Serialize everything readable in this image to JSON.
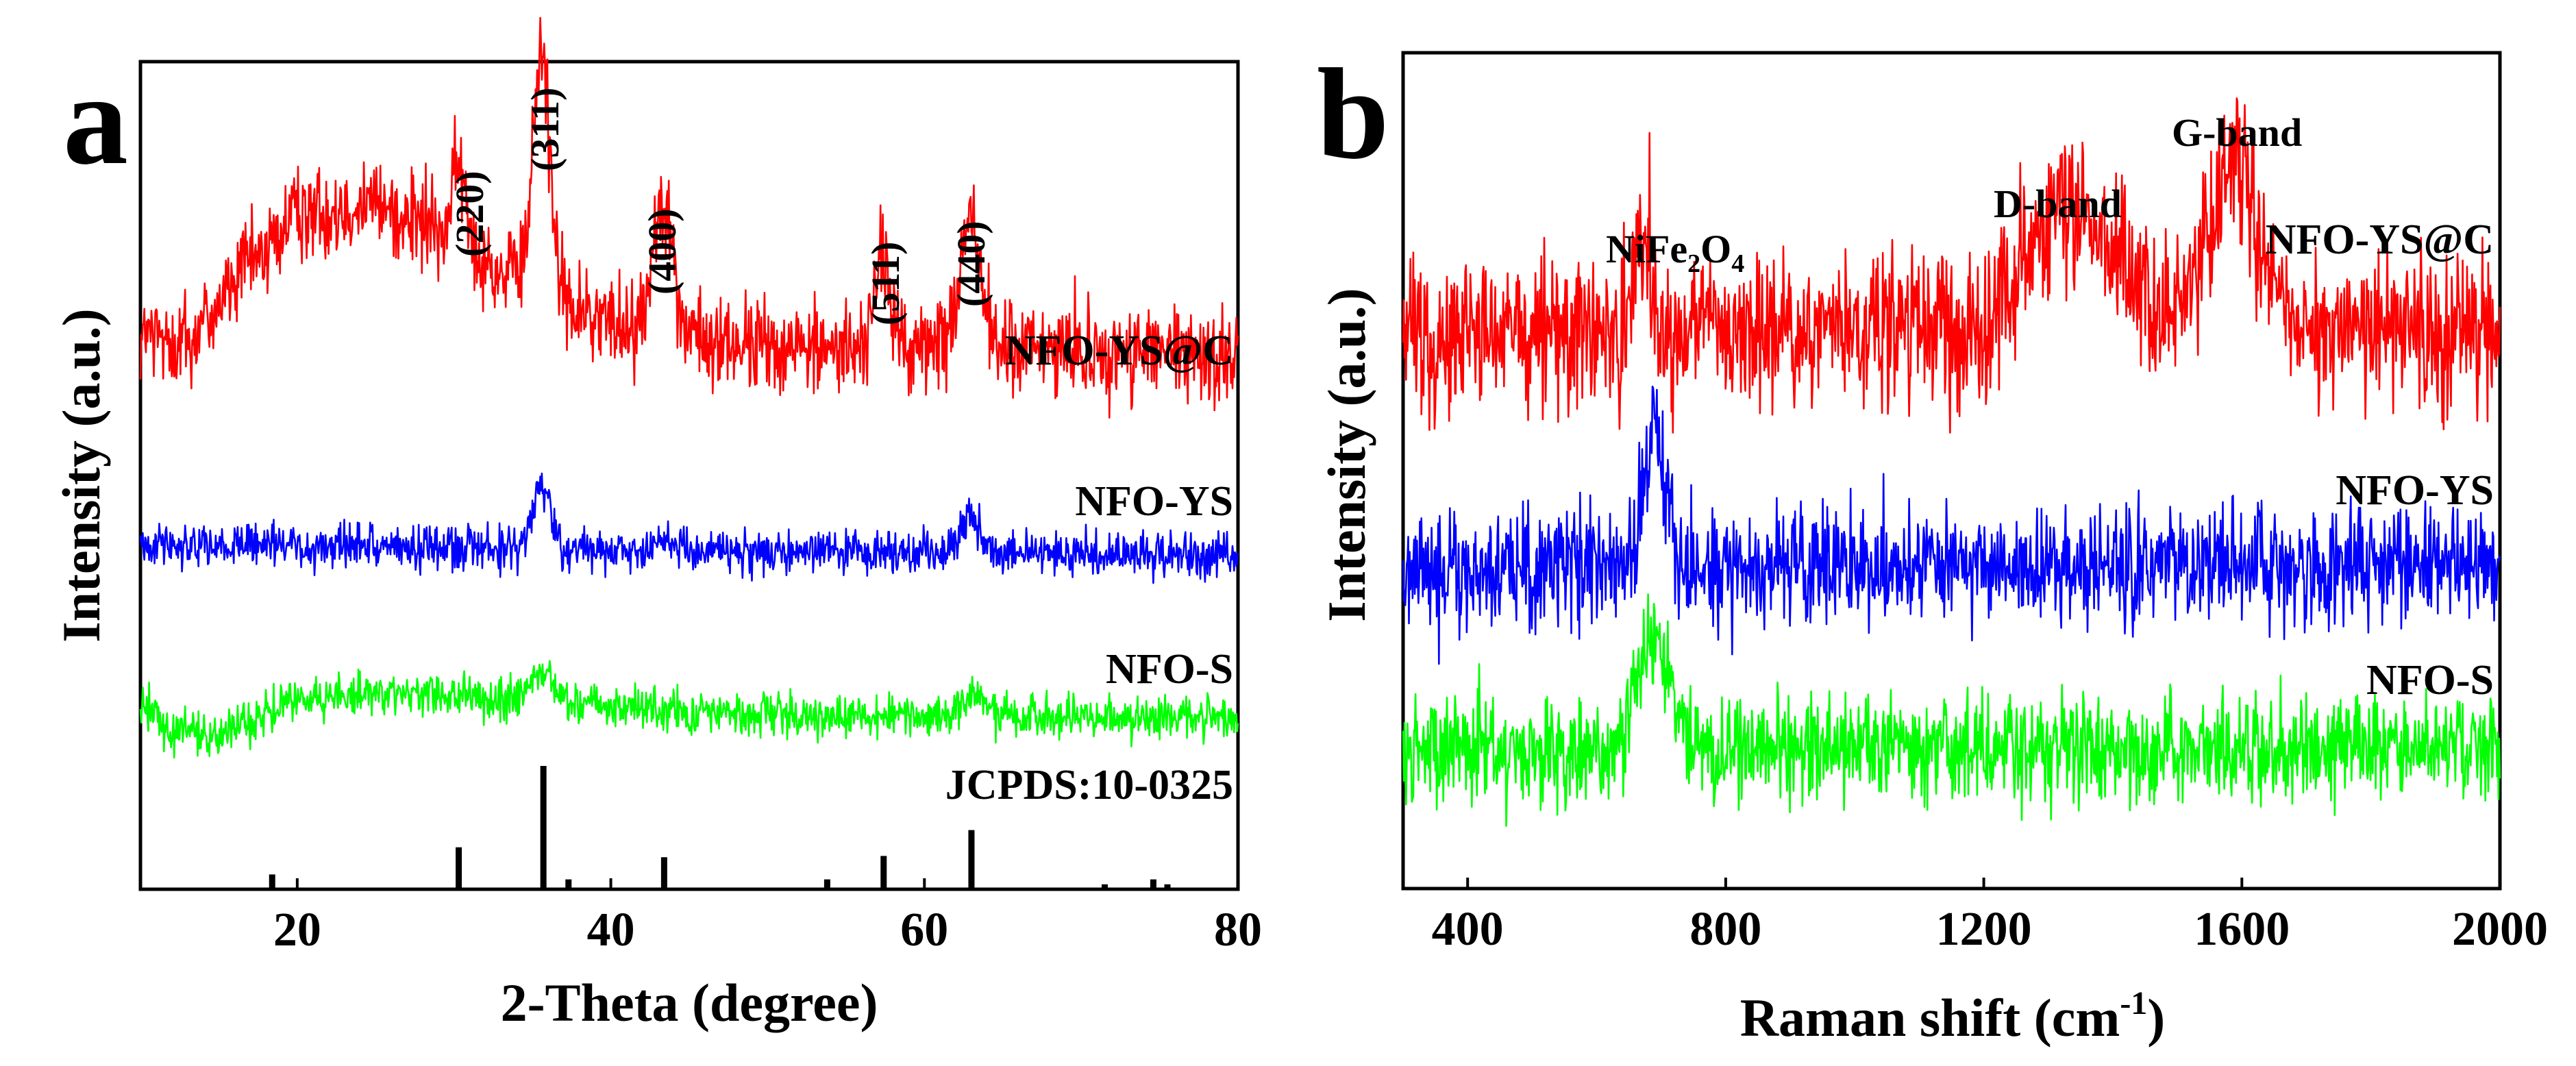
{
  "chart_data": [
    {
      "panel": "a",
      "type": "line",
      "xlabel": "2-Theta (degree)",
      "ylabel": "Intensity (a.u.)",
      "xlim": [
        10,
        80
      ],
      "xticks": [
        20,
        40,
        60,
        80
      ],
      "yticks": [],
      "series": [
        {
          "name": "NFO-YS@C",
          "color": "#ff0000",
          "baseline": [
            [
              10,
              0.25
            ],
            [
              13,
              0.23
            ],
            [
              16,
              0.38
            ],
            [
              20,
              0.53
            ],
            [
              24,
              0.57
            ],
            [
              27,
              0.53
            ],
            [
              30,
              0.47
            ],
            [
              33,
              0.4
            ],
            [
              38,
              0.3
            ],
            [
              42,
              0.27
            ],
            [
              47,
              0.23
            ],
            [
              55,
              0.22
            ],
            [
              65,
              0.22
            ],
            [
              80,
              0.2
            ]
          ],
          "peaks": [
            [
              30.3,
              0.17,
              0.5
            ],
            [
              35.6,
              0.58,
              0.55
            ],
            [
              43.3,
              0.33,
              0.6
            ],
            [
              57.3,
              0.2,
              0.55
            ],
            [
              62.9,
              0.3,
              0.7
            ]
          ],
          "noise": 0.07
        },
        {
          "name": "NFO-YS",
          "color": "#0000ff",
          "baseline": [
            [
              10,
              0.04
            ],
            [
              20,
              0.03
            ],
            [
              40,
              0.02
            ],
            [
              80,
              0.01
            ]
          ],
          "peaks": [
            [
              35.6,
              0.16,
              0.6
            ],
            [
              43.3,
              0.04,
              0.6
            ],
            [
              63,
              0.09,
              0.7
            ]
          ],
          "noise": 0.035
        },
        {
          "name": "NFO-S",
          "color": "#00ff00",
          "baseline": [
            [
              10,
              0.1
            ],
            [
              12,
              0.02
            ],
            [
              15,
              0.0
            ],
            [
              20,
              0.1
            ],
            [
              25,
              0.12
            ],
            [
              30,
              0.11
            ],
            [
              35,
              0.1
            ],
            [
              45,
              0.07
            ],
            [
              55,
              0.06
            ],
            [
              80,
              0.05
            ]
          ],
          "peaks": [
            [
              35.6,
              0.08,
              0.6
            ],
            [
              63.2,
              0.05,
              0.7
            ]
          ],
          "noise": 0.035
        }
      ],
      "reference": {
        "name": "JCPDS:10-0325",
        "lines": [
          [
            18.4,
            0.12
          ],
          [
            30.3,
            0.34
          ],
          [
            35.7,
            1.0
          ],
          [
            37.3,
            0.08
          ],
          [
            43.4,
            0.26
          ],
          [
            53.8,
            0.08
          ],
          [
            57.4,
            0.27
          ],
          [
            63.0,
            0.48
          ],
          [
            71.5,
            0.04
          ],
          [
            74.6,
            0.08
          ],
          [
            75.5,
            0.04
          ]
        ]
      },
      "annotations": [
        "(220)",
        "(311)",
        "(400)",
        "(511)",
        "(440)"
      ],
      "series_labels": [
        "NFO-YS@C",
        "NFO-YS",
        "NFO-S"
      ]
    },
    {
      "panel": "b",
      "type": "line",
      "xlabel_prefix": "Raman shift (cm",
      "xlabel_sup": "-1",
      "xlabel_suffix": ")",
      "ylabel": "Intensity (a.u.)",
      "xlim": [
        300,
        2000
      ],
      "xticks": [
        400,
        800,
        1200,
        1600,
        2000
      ],
      "yticks": [],
      "series": [
        {
          "name": "NFO-YS@C",
          "color": "#ff0000",
          "baseline": [
            [
              300,
              0.2
            ],
            [
              2000,
              0.2
            ]
          ],
          "peaks": [
            [
              670,
              0.22,
              12
            ],
            [
              1340,
              0.3,
              70
            ],
            [
              1590,
              0.4,
              40
            ]
          ],
          "noise": 0.11
        },
        {
          "name": "NFO-YS",
          "color": "#0000ff",
          "baseline": [
            [
              300,
              0.0
            ],
            [
              2000,
              0.0
            ]
          ],
          "peaks": [
            [
              690,
              0.3,
              18
            ]
          ],
          "noise": 0.085
        },
        {
          "name": "NFO-S",
          "color": "#00ff00",
          "baseline": [
            [
              300,
              0.0
            ],
            [
              2000,
              0.0
            ]
          ],
          "peaks": [
            [
              690,
              0.3,
              25
            ]
          ],
          "noise": 0.085
        }
      ],
      "annotations": {
        "nife2o4": {
          "main": "NiFe",
          "sub1": "2",
          "mid": "O",
          "sub2": "4"
        },
        "d_band": "D-band",
        "g_band": "G-band"
      },
      "series_labels": [
        "NFO-YS@C",
        "NFO-YS",
        "NFO-S"
      ]
    }
  ],
  "panel_letters": [
    "a",
    "b"
  ]
}
